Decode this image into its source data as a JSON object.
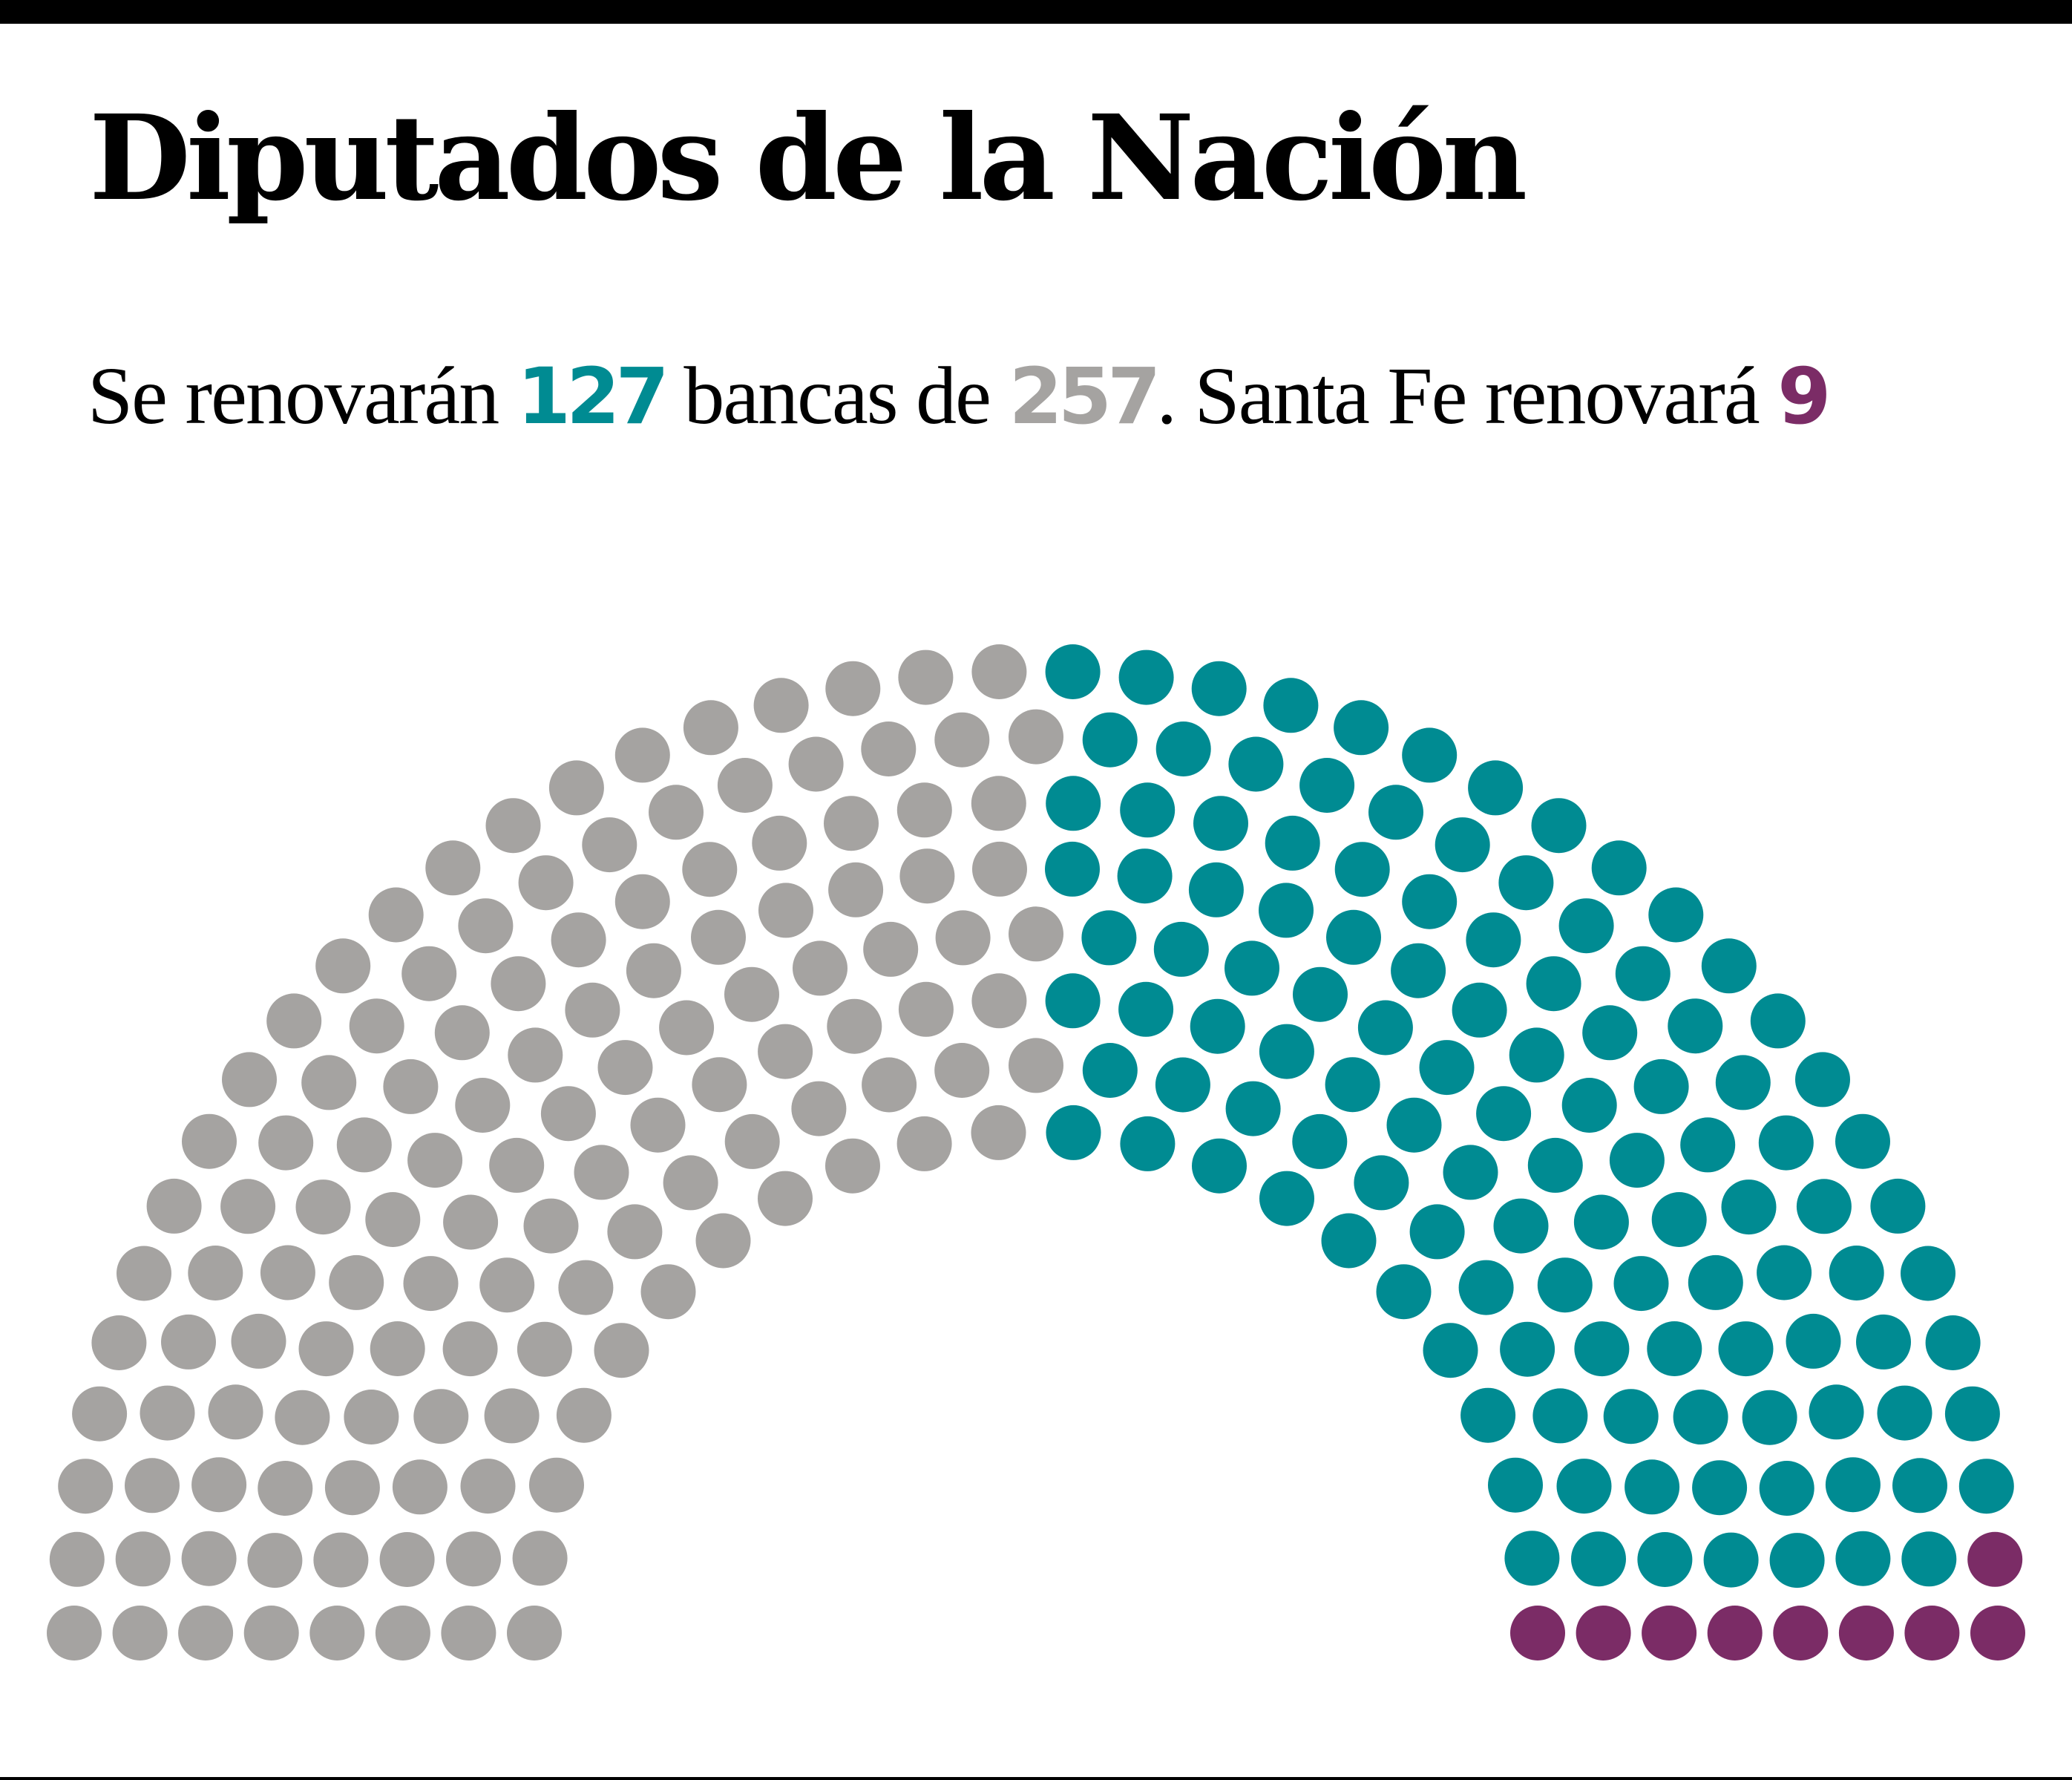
{
  "header": {
    "title": "Diputados de la Nación",
    "sub_part1": "Se renovarán ",
    "renew_count": "127",
    "sub_part2": " bancas de ",
    "total_count": "257",
    "sub_part3": ". Santa Fe renovará ",
    "santafe_count": "9"
  },
  "colors": {
    "renewing": "#008b92",
    "not_renewing": "#a5a3a1",
    "santa_fe": "#7b2c66"
  },
  "chart_data": {
    "type": "hemicycle",
    "total_seats": 257,
    "rows": 8,
    "series": [
      {
        "value": 130,
        "color": "#a5a3a1"
      },
      {
        "value": 118,
        "color": "#008b92"
      },
      {
        "value": 9,
        "color": "#7b2c66"
      }
    ]
  }
}
